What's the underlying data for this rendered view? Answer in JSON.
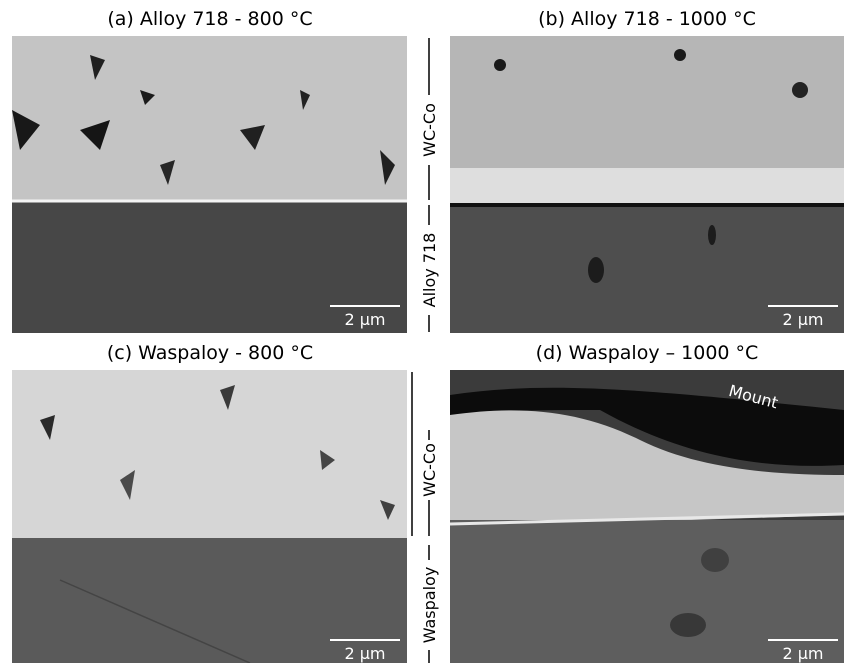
{
  "panels": [
    {
      "title": "(a) Alloy 718 - 800 °C",
      "scale_bar": "2 µm"
    },
    {
      "title": "(b) Alloy 718 - 1000 °C",
      "scale_bar": "2 µm"
    },
    {
      "title": "(c) Waspaloy - 800 °C",
      "scale_bar": "2 µm"
    },
    {
      "title": "(d) Waspaloy – 1000 °C",
      "scale_bar": "2 µm",
      "annotation": "Mount"
    }
  ],
  "side_labels": {
    "top": [
      "WC-Co",
      "Alloy 718"
    ],
    "bottom": [
      "WC-Co",
      "Waspaloy"
    ]
  }
}
